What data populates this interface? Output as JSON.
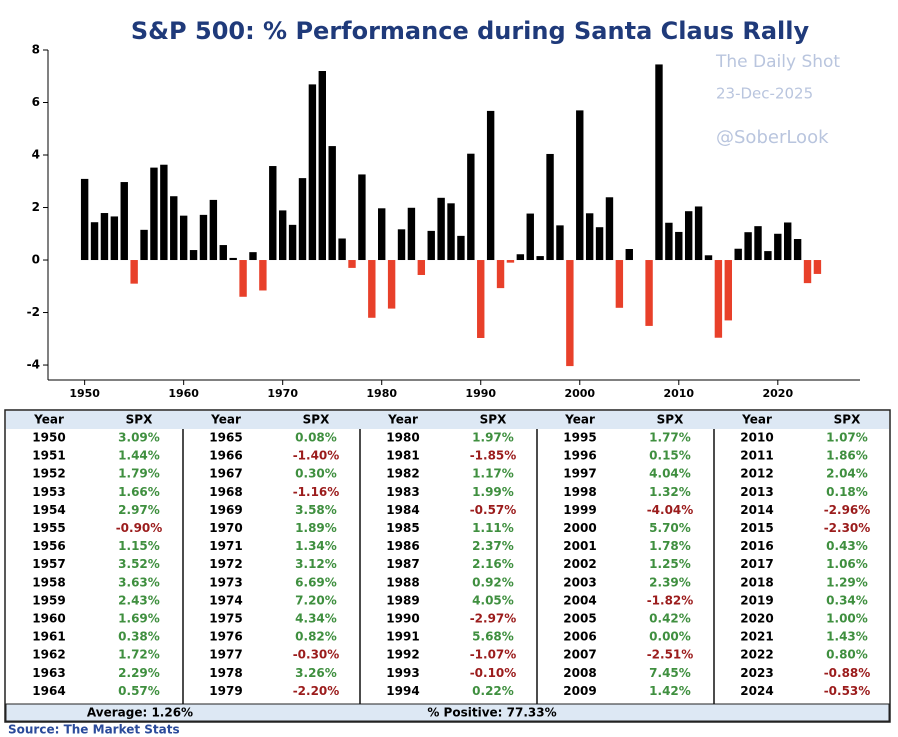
{
  "chart_data": {
    "type": "bar",
    "title": "S&P 500: % Performance during Santa Claus Rally",
    "annotations": [
      "The Daily Shot",
      "23-Dec-2025",
      "@SoberLook"
    ],
    "x": [
      1950,
      1951,
      1952,
      1953,
      1954,
      1955,
      1956,
      1957,
      1958,
      1959,
      1960,
      1961,
      1962,
      1963,
      1964,
      1965,
      1966,
      1967,
      1968,
      1969,
      1970,
      1971,
      1972,
      1973,
      1974,
      1975,
      1976,
      1977,
      1978,
      1979,
      1980,
      1981,
      1982,
      1983,
      1984,
      1985,
      1986,
      1987,
      1988,
      1989,
      1990,
      1991,
      1992,
      1993,
      1994,
      1995,
      1996,
      1997,
      1998,
      1999,
      2000,
      2001,
      2002,
      2003,
      2004,
      2005,
      2006,
      2007,
      2008,
      2009,
      2010,
      2011,
      2012,
      2013,
      2014,
      2015,
      2016,
      2017,
      2018,
      2019,
      2020,
      2021,
      2022,
      2023,
      2024
    ],
    "values": [
      3.09,
      1.44,
      1.79,
      1.66,
      2.97,
      -0.9,
      1.15,
      3.52,
      3.63,
      2.43,
      1.69,
      0.38,
      1.72,
      2.29,
      0.57,
      0.08,
      -1.4,
      0.3,
      -1.16,
      3.58,
      1.89,
      1.34,
      3.12,
      6.69,
      7.2,
      4.34,
      0.82,
      -0.3,
      3.26,
      -2.2,
      1.97,
      -1.85,
      1.17,
      1.99,
      -0.57,
      1.11,
      2.37,
      2.16,
      0.92,
      4.05,
      -2.97,
      5.68,
      -1.07,
      -0.1,
      0.22,
      1.77,
      0.15,
      4.04,
      1.32,
      -4.04,
      5.7,
      1.78,
      1.25,
      2.39,
      -1.82,
      0.42,
      0,
      -2.51,
      7.45,
      1.42,
      1.07,
      1.86,
      2.04,
      0.18,
      -2.96,
      -2.3,
      0.43,
      1.06,
      1.29,
      0.34,
      1,
      1.43,
      0.8,
      -0.88,
      -0.53
    ],
    "value_labels": [
      "3.09%",
      "1.44%",
      "1.79%",
      "1.66%",
      "2.97%",
      "-0.90%",
      "1.15%",
      "3.52%",
      "3.63%",
      "2.43%",
      "1.69%",
      "0.38%",
      "1.72%",
      "2.29%",
      "0.57%",
      "0.08%",
      "-1.40%",
      "0.30%",
      "-1.16%",
      "3.58%",
      "1.89%",
      "1.34%",
      "3.12%",
      "6.69%",
      "7.20%",
      "4.34%",
      "0.82%",
      "-0.30%",
      "3.26%",
      "-2.20%",
      "1.97%",
      "-1.85%",
      "1.17%",
      "1.99%",
      "-0.57%",
      "1.11%",
      "2.37%",
      "2.16%",
      "0.92%",
      "4.05%",
      "-2.97%",
      "5.68%",
      "-1.07%",
      "-0.10%",
      "0.22%",
      "1.77%",
      "0.15%",
      "4.04%",
      "1.32%",
      "-4.04%",
      "5.70%",
      "1.78%",
      "1.25%",
      "2.39%",
      "-1.82%",
      "0.42%",
      "0.00%",
      "-2.51%",
      "7.45%",
      "1.42%",
      "1.07%",
      "1.86%",
      "2.04%",
      "0.18%",
      "-2.96%",
      "-2.30%",
      "0.43%",
      "1.06%",
      "1.29%",
      "0.34%",
      "1.00%",
      "1.43%",
      "0.80%",
      "-0.88%",
      "-0.53%"
    ],
    "color": "#000000",
    "negative_color": "#e8402a",
    "xlim": [
      1946.3,
      2028.3
    ],
    "xticks": [
      1950,
      1960,
      1970,
      1980,
      1990,
      2000,
      2010,
      2020
    ],
    "ylim": [
      -4.57,
      8
    ],
    "yticks": [
      -4,
      -2,
      0,
      2,
      4,
      6,
      8
    ]
  },
  "table": {
    "headers": [
      "Year",
      "SPX"
    ],
    "average": "Average: 1.26%",
    "positive": "% Positive: 77.33%"
  },
  "source": "Source:  The Market Stats"
}
